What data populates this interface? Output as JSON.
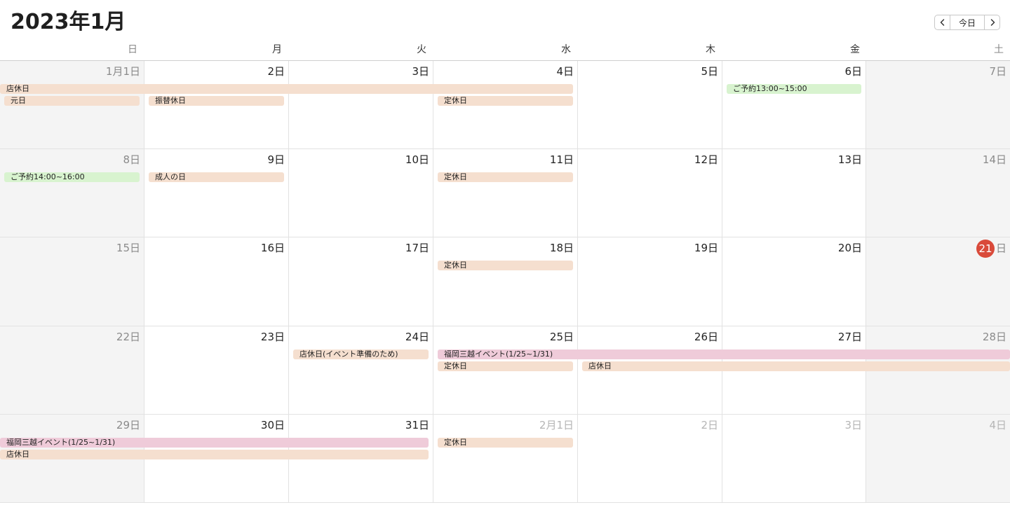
{
  "header": {
    "title": "2023年1月",
    "today_label": "今日",
    "prev_icon": "chevron-left-icon",
    "next_icon": "chevron-right-icon"
  },
  "weekdays": [
    "日",
    "月",
    "火",
    "水",
    "木",
    "金",
    "土"
  ],
  "weeks": [
    [
      "1月1日",
      "2日",
      "3日",
      "4日",
      "5日",
      "6日",
      "7日"
    ],
    [
      "8日",
      "9日",
      "10日",
      "11日",
      "12日",
      "13日",
      "14日"
    ],
    [
      "15日",
      "16日",
      "17日",
      "18日",
      "19日",
      "20日",
      "日"
    ],
    [
      "22日",
      "23日",
      "24日",
      "25日",
      "26日",
      "27日",
      "28日"
    ],
    [
      "29日",
      "30日",
      "31日",
      "2月1日",
      "2日",
      "3日",
      "4日"
    ]
  ],
  "today": {
    "number": "21",
    "suffix": "日"
  },
  "events": {
    "w1_closed": "店休日",
    "w1_newyear": "元日",
    "w1_substitute": "振替休日",
    "w1_regular": "定休日",
    "w1_booking": "ご予約13:00~15:00",
    "w2_booking": "ご予約14:00~16:00",
    "w2_adult": "成人の日",
    "w2_regular": "定休日",
    "w3_regular": "定休日",
    "w4_closed_event": "店休日(イベント準備のため)",
    "w4_fukuoka": "福岡三越イベント(1/25~1/31)",
    "w4_regular": "定休日",
    "w4_closed": "店休日",
    "w5_fukuoka": "福岡三越イベント(1/25~1/31)",
    "w5_closed": "店休日",
    "w5_regular": "定休日"
  },
  "colors": {
    "closed": "#f5dfcf",
    "booking": "#d8f3cf",
    "event": "#efcbd9",
    "today": "#d94a3a"
  }
}
